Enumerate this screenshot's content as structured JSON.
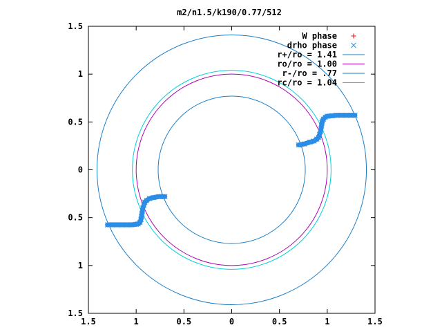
{
  "chart_data": {
    "type": "scatter",
    "title": "m2/n1.5/k190/0.77/512",
    "xlim": [
      -1.5,
      1.5
    ],
    "ylim": [
      -1.5,
      1.5
    ],
    "x_ticks": [
      {
        "value": -1.5,
        "label": "1.5"
      },
      {
        "value": -1.0,
        "label": "1"
      },
      {
        "value": -0.5,
        "label": "0.5"
      },
      {
        "value": 0.0,
        "label": "0"
      },
      {
        "value": 0.5,
        "label": "0.5"
      },
      {
        "value": 1.0,
        "label": "1"
      },
      {
        "value": 1.5,
        "label": "1.5"
      }
    ],
    "y_ticks": [
      {
        "value": 1.5,
        "label": "1.5"
      },
      {
        "value": 1.0,
        "label": "1"
      },
      {
        "value": 0.5,
        "label": "0.5"
      },
      {
        "value": 0.0,
        "label": "0"
      },
      {
        "value": -0.5,
        "label": "0.5"
      },
      {
        "value": -1.0,
        "label": "1"
      },
      {
        "value": -1.5,
        "label": "1.5"
      }
    ],
    "grid": false,
    "legend_position": "top-right",
    "circles": [
      {
        "name": "r+/ro = 1.41",
        "radius": 1.41,
        "color": "#1a7ec8"
      },
      {
        "name": "ro/ro = 1.00",
        "radius": 1.0,
        "color": "#b000b0"
      },
      {
        "name": "r-/ro = .77",
        "radius": 0.77,
        "color": "#1a7ec8"
      },
      {
        "name": "rc/ro = 1.04",
        "radius": 1.04,
        "color": "#00d0d8"
      }
    ],
    "series": [
      {
        "name": "W phase",
        "marker": "plus",
        "color": "#ff0000",
        "x": [],
        "y": []
      },
      {
        "name": "drho phase",
        "marker": "cross",
        "color": "#2a8ee8",
        "x": [
          0.7,
          0.76,
          0.82,
          0.86,
          0.89,
          0.91,
          0.92,
          0.93,
          0.935,
          0.94,
          0.945,
          0.95,
          0.96,
          0.98,
          1.0,
          1.05,
          1.1,
          1.15,
          1.2,
          1.25,
          1.29,
          -0.7,
          -0.76,
          -0.82,
          -0.86,
          -0.89,
          -0.91,
          -0.92,
          -0.93,
          -0.935,
          -0.94,
          -0.945,
          -0.95,
          -0.96,
          -0.98,
          -1.0,
          -1.05,
          -1.1,
          -1.15,
          -1.2,
          -1.25,
          -1.3
        ],
        "y": [
          0.26,
          0.27,
          0.29,
          0.3,
          0.32,
          0.34,
          0.37,
          0.4,
          0.43,
          0.46,
          0.49,
          0.51,
          0.53,
          0.55,
          0.56,
          0.565,
          0.57,
          0.57,
          0.57,
          0.57,
          0.57,
          -0.28,
          -0.28,
          -0.29,
          -0.3,
          -0.32,
          -0.34,
          -0.37,
          -0.4,
          -0.43,
          -0.46,
          -0.49,
          -0.52,
          -0.55,
          -0.565,
          -0.57,
          -0.575,
          -0.575,
          -0.575,
          -0.575,
          -0.575,
          -0.575
        ]
      }
    ]
  }
}
